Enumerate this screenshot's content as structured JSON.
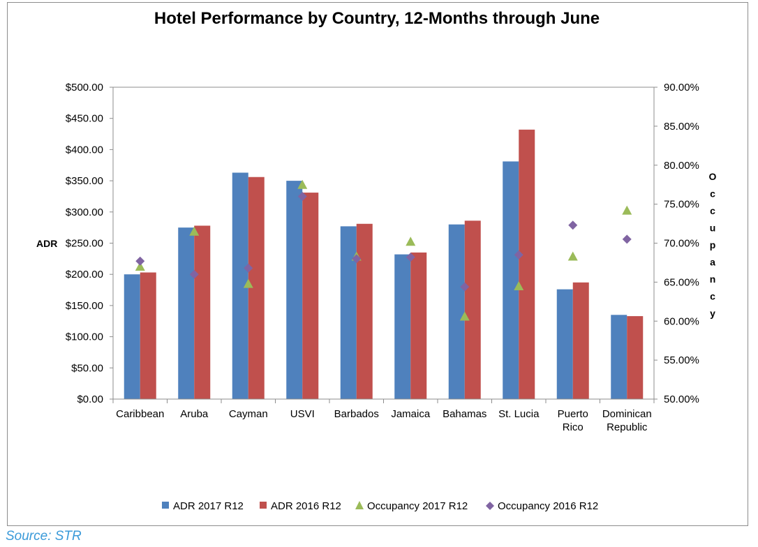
{
  "source_text": "Source: STR",
  "colors": {
    "adr2017": "#4f81bd",
    "adr2016": "#c0504d",
    "occ2017": "#9bbb59",
    "occ2016": "#8064a2"
  },
  "chart_data": {
    "type": "bar",
    "title": "Hotel Performance by Country, 12-Months through June",
    "ylabel": "ADR",
    "y2label": "Occupancy",
    "ylim": [
      0,
      500
    ],
    "y2lim": [
      50,
      90
    ],
    "y_ticks": [
      "$0.00",
      "$50.00",
      "$100.00",
      "$150.00",
      "$200.00",
      "$250.00",
      "$300.00",
      "$350.00",
      "$400.00",
      "$450.00",
      "$500.00"
    ],
    "y2_ticks": [
      "50.00%",
      "55.00%",
      "60.00%",
      "65.00%",
      "70.00%",
      "75.00%",
      "80.00%",
      "85.00%",
      "90.00%"
    ],
    "categories": [
      [
        "Caribbean"
      ],
      [
        "Aruba"
      ],
      [
        "Cayman"
      ],
      [
        "USVI"
      ],
      [
        "Barbados"
      ],
      [
        "Jamaica"
      ],
      [
        "Bahamas"
      ],
      [
        "St. Lucia"
      ],
      [
        "Puerto",
        "Rico"
      ],
      [
        "Dominican",
        "Republic"
      ]
    ],
    "series": [
      {
        "name": "ADR 2017 R12",
        "kind": "bar",
        "axis": "left",
        "values": [
          200,
          275,
          363,
          350,
          277,
          232,
          280,
          381,
          176,
          135
        ]
      },
      {
        "name": "ADR 2016 R12",
        "kind": "bar",
        "axis": "left",
        "values": [
          203,
          278,
          356,
          331,
          281,
          235,
          286,
          432,
          187,
          133
        ]
      },
      {
        "name": "Occupancy 2017 R12",
        "kind": "marker",
        "marker": "triangle",
        "axis": "right",
        "values": [
          67.0,
          71.5,
          64.8,
          77.5,
          68.3,
          70.2,
          60.6,
          64.5,
          68.3,
          74.2
        ]
      },
      {
        "name": "Occupancy 2016 R12",
        "kind": "marker",
        "marker": "diamond",
        "axis": "right",
        "values": [
          67.7,
          66.0,
          66.8,
          76.0,
          68.0,
          68.2,
          64.4,
          68.5,
          72.3,
          70.5
        ]
      }
    ],
    "legend_position": "bottom",
    "grid": false
  }
}
